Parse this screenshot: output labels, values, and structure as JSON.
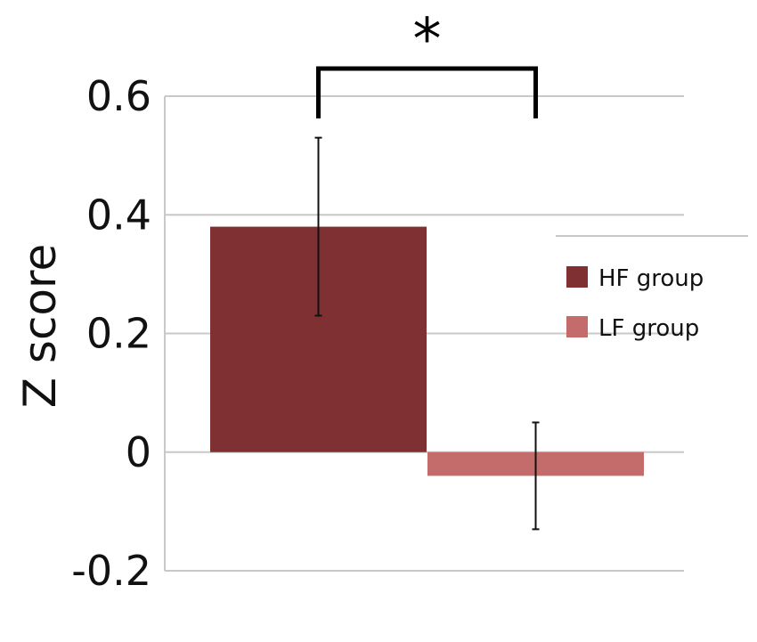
{
  "chart_data": {
    "type": "bar",
    "ylabel": "Z score",
    "ylim": [
      -0.2,
      0.6
    ],
    "yticks": [
      0.6,
      0.4,
      0.2,
      0,
      -0.2
    ],
    "ytick_labels": [
      "0.6",
      "0.4",
      "0.2",
      "0",
      "-0.2"
    ],
    "grid": true,
    "series": [
      {
        "name": "HF group",
        "value": 0.38,
        "error": 0.15,
        "color": "#7F3032"
      },
      {
        "name": "LF group",
        "value": -0.04,
        "error": 0.09,
        "color": "#C46B6C"
      }
    ],
    "significance": {
      "label": "*",
      "between": [
        "HF group",
        "LF group"
      ]
    },
    "legend_position": "right"
  }
}
